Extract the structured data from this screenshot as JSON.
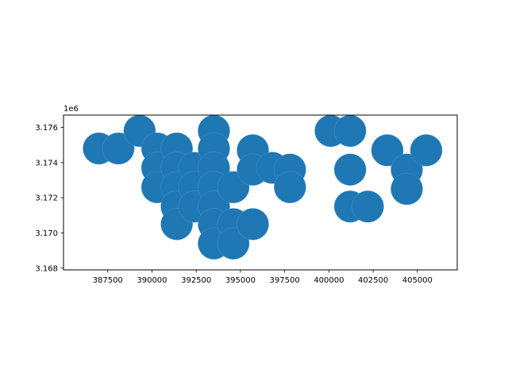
{
  "chart_data": {
    "type": "scatter",
    "title": "",
    "xlabel": "",
    "ylabel": "",
    "offset_text": "1e6",
    "xlim": [
      385000,
      407250
    ],
    "ylim": [
      3167900,
      3176700
    ],
    "xticks": [
      387500,
      390000,
      392500,
      395000,
      397500,
      400000,
      402500,
      405000
    ],
    "xtick_labels": [
      "387500",
      "390000",
      "392500",
      "395000",
      "397500",
      "400000",
      "402500",
      "405000"
    ],
    "yticks": [
      3168000,
      3170000,
      3172000,
      3174000,
      3176000
    ],
    "ytick_labels": [
      "3.168",
      "3.170",
      "3.172",
      "3.174",
      "3.176"
    ],
    "grid": false,
    "marker": "filled circle buffers (radius ≈ 900 units)",
    "color": "#1f77b4",
    "edge_color": "#5b9bd0",
    "radius": 900,
    "points": [
      {
        "x": 387000,
        "y": 3174800
      },
      {
        "x": 388100,
        "y": 3174800
      },
      {
        "x": 389300,
        "y": 3175800
      },
      {
        "x": 390300,
        "y": 3174800
      },
      {
        "x": 390300,
        "y": 3173700
      },
      {
        "x": 390300,
        "y": 3172600
      },
      {
        "x": 391400,
        "y": 3174800
      },
      {
        "x": 391400,
        "y": 3173700
      },
      {
        "x": 391400,
        "y": 3172600
      },
      {
        "x": 391400,
        "y": 3171500
      },
      {
        "x": 391400,
        "y": 3170500
      },
      {
        "x": 392400,
        "y": 3173700
      },
      {
        "x": 392400,
        "y": 3172600
      },
      {
        "x": 392400,
        "y": 3171500
      },
      {
        "x": 393500,
        "y": 3175800
      },
      {
        "x": 393500,
        "y": 3174800
      },
      {
        "x": 393500,
        "y": 3173700
      },
      {
        "x": 393500,
        "y": 3172600
      },
      {
        "x": 393500,
        "y": 3171500
      },
      {
        "x": 393500,
        "y": 3170500
      },
      {
        "x": 393500,
        "y": 3169400
      },
      {
        "x": 394600,
        "y": 3172600
      },
      {
        "x": 394600,
        "y": 3170500
      },
      {
        "x": 394600,
        "y": 3169400
      },
      {
        "x": 395700,
        "y": 3174700
      },
      {
        "x": 395700,
        "y": 3173600
      },
      {
        "x": 395700,
        "y": 3170500
      },
      {
        "x": 396800,
        "y": 3173700
      },
      {
        "x": 397800,
        "y": 3173600
      },
      {
        "x": 397800,
        "y": 3172600
      },
      {
        "x": 400100,
        "y": 3175800
      },
      {
        "x": 401200,
        "y": 3175800
      },
      {
        "x": 401200,
        "y": 3173600
      },
      {
        "x": 401200,
        "y": 3171500
      },
      {
        "x": 402200,
        "y": 3171500
      },
      {
        "x": 403300,
        "y": 3174700
      },
      {
        "x": 404400,
        "y": 3173600
      },
      {
        "x": 404400,
        "y": 3172500
      },
      {
        "x": 405500,
        "y": 3174700
      }
    ]
  }
}
